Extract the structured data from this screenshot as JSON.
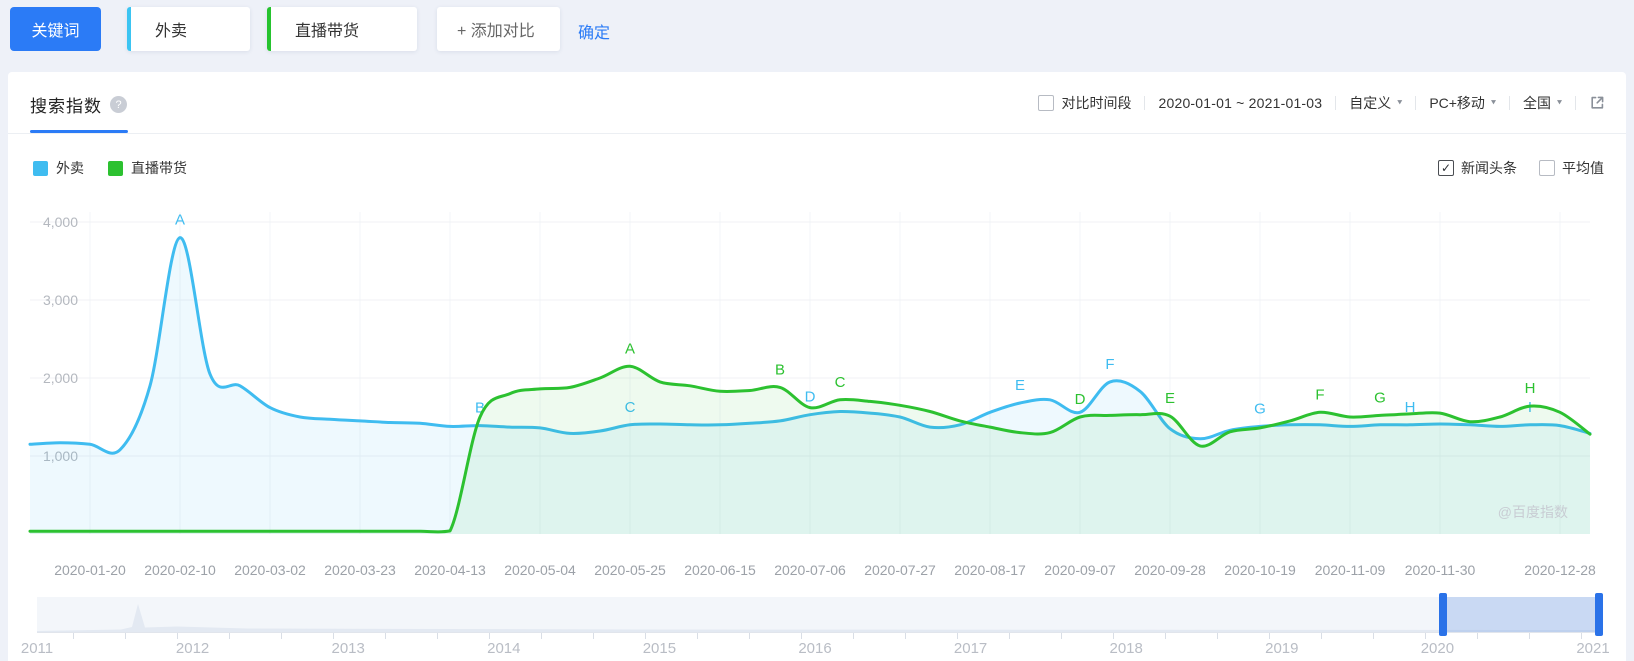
{
  "colors": {
    "accent_blue": "#2b7bf6",
    "series_waimai": "#3fbcf0",
    "series_zhibo": "#2cc130",
    "handle_blue": "#2a72e8"
  },
  "topbar": {
    "keyword_button": {
      "label": "关键词"
    },
    "keywords": [
      {
        "label": "外卖",
        "accent": "#3bc4f2"
      },
      {
        "label": "直播带货",
        "accent": "#26c32f"
      }
    ],
    "add_compare_label": "+ 添加对比",
    "confirm_label": "确定"
  },
  "header": {
    "title": "搜索指数",
    "help_icon": "question-mark-icon",
    "compare_checkbox_label": "对比时间段",
    "compare_checkbox_checked": false,
    "date_range": "2020-01-01 ~ 2021-01-03",
    "range_preset": "自定义",
    "platform": "PC+移动",
    "region": "全国",
    "export_icon": "open-in-new-icon"
  },
  "legend": {
    "series": [
      {
        "label": "外卖",
        "color": "#3fbcf0"
      },
      {
        "label": "直播带货",
        "color": "#2cc130"
      }
    ],
    "toggles": [
      {
        "label": "新闻头条",
        "checked": true
      },
      {
        "label": "平均值",
        "checked": false
      }
    ]
  },
  "chart_data": {
    "type": "line",
    "title": "搜索指数",
    "smooth": true,
    "grid": true,
    "ylim": [
      0,
      4000
    ],
    "y_ticks": [
      {
        "value": 1000,
        "label": "1,000"
      },
      {
        "value": 2000,
        "label": "2,000"
      },
      {
        "value": 3000,
        "label": "3,000"
      },
      {
        "value": 4000,
        "label": "4,000"
      }
    ],
    "x": [
      "2020-01-06",
      "2020-01-13",
      "2020-01-20",
      "2020-01-27",
      "2020-02-03",
      "2020-02-10",
      "2020-02-17",
      "2020-02-24",
      "2020-03-02",
      "2020-03-09",
      "2020-03-16",
      "2020-03-23",
      "2020-03-30",
      "2020-04-06",
      "2020-04-13",
      "2020-04-20",
      "2020-04-27",
      "2020-05-04",
      "2020-05-11",
      "2020-05-18",
      "2020-05-25",
      "2020-06-01",
      "2020-06-08",
      "2020-06-15",
      "2020-06-22",
      "2020-06-29",
      "2020-07-06",
      "2020-07-13",
      "2020-07-20",
      "2020-07-27",
      "2020-08-03",
      "2020-08-10",
      "2020-08-17",
      "2020-08-24",
      "2020-08-31",
      "2020-09-07",
      "2020-09-14",
      "2020-09-21",
      "2020-09-28",
      "2020-10-05",
      "2020-10-12",
      "2020-10-19",
      "2020-10-26",
      "2020-11-02",
      "2020-11-09",
      "2020-11-16",
      "2020-11-23",
      "2020-11-30",
      "2020-12-07",
      "2020-12-14",
      "2020-12-21",
      "2020-12-28",
      "2021-01-03"
    ],
    "x_tick_labels": [
      {
        "label": "2020-01-20",
        "i": 2
      },
      {
        "label": "2020-02-10",
        "i": 5
      },
      {
        "label": "2020-03-02",
        "i": 8
      },
      {
        "label": "2020-03-23",
        "i": 11
      },
      {
        "label": "2020-04-13",
        "i": 14
      },
      {
        "label": "2020-05-04",
        "i": 17
      },
      {
        "label": "2020-05-25",
        "i": 20
      },
      {
        "label": "2020-06-15",
        "i": 23
      },
      {
        "label": "2020-07-06",
        "i": 26
      },
      {
        "label": "2020-07-27",
        "i": 29
      },
      {
        "label": "2020-08-17",
        "i": 32
      },
      {
        "label": "2020-09-07",
        "i": 35
      },
      {
        "label": "2020-09-28",
        "i": 38
      },
      {
        "label": "2020-10-19",
        "i": 41
      },
      {
        "label": "2020-11-09",
        "i": 44
      },
      {
        "label": "2020-11-30",
        "i": 47
      },
      {
        "label": "2020-12-28",
        "i": 51
      }
    ],
    "series": [
      {
        "name": "外卖",
        "color": "#3fbcf0",
        "fill": "rgba(63,188,240,0.09)",
        "values": [
          1150,
          1170,
          1150,
          1080,
          1900,
          3800,
          2050,
          1900,
          1620,
          1500,
          1470,
          1450,
          1430,
          1420,
          1380,
          1390,
          1370,
          1360,
          1290,
          1320,
          1400,
          1410,
          1400,
          1400,
          1420,
          1450,
          1530,
          1570,
          1550,
          1500,
          1370,
          1400,
          1560,
          1680,
          1720,
          1560,
          1950,
          1830,
          1350,
          1220,
          1330,
          1380,
          1400,
          1400,
          1380,
          1400,
          1400,
          1410,
          1400,
          1380,
          1400,
          1390,
          1290
        ],
        "annotations": [
          {
            "letter": "A",
            "i": 5
          },
          {
            "letter": "B",
            "i": 15
          },
          {
            "letter": "C",
            "i": 20
          },
          {
            "letter": "D",
            "i": 26
          },
          {
            "letter": "E",
            "i": 33
          },
          {
            "letter": "F",
            "i": 36
          },
          {
            "letter": "G",
            "i": 41
          },
          {
            "letter": "H",
            "i": 46
          },
          {
            "letter": "I",
            "i": 50
          }
        ]
      },
      {
        "name": "直播带货",
        "color": "#2cc130",
        "fill": "rgba(44,193,48,0.08)",
        "values": [
          35,
          35,
          35,
          35,
          35,
          35,
          35,
          35,
          35,
          35,
          35,
          35,
          35,
          35,
          40,
          1500,
          1800,
          1860,
          1880,
          2000,
          2150,
          1950,
          1900,
          1830,
          1840,
          1880,
          1620,
          1720,
          1700,
          1650,
          1570,
          1450,
          1370,
          1300,
          1300,
          1500,
          1520,
          1530,
          1510,
          1130,
          1310,
          1360,
          1450,
          1560,
          1500,
          1520,
          1540,
          1550,
          1440,
          1500,
          1640,
          1560,
          1280
        ],
        "annotations": [
          {
            "letter": "A",
            "i": 20
          },
          {
            "letter": "B",
            "i": 25
          },
          {
            "letter": "C",
            "i": 27
          },
          {
            "letter": "D",
            "i": 35
          },
          {
            "letter": "E",
            "i": 38
          },
          {
            "letter": "F",
            "i": 43
          },
          {
            "letter": "G",
            "i": 45
          },
          {
            "letter": "H",
            "i": 50
          }
        ]
      }
    ],
    "watermark": "@百度指数"
  },
  "timeline": {
    "years": [
      "2011",
      "2012",
      "2013",
      "2014",
      "2015",
      "2016",
      "2017",
      "2018",
      "2019",
      "2020",
      "2021"
    ],
    "selected_range": {
      "start": "2020-01-01",
      "end": "2021-01-03"
    }
  }
}
